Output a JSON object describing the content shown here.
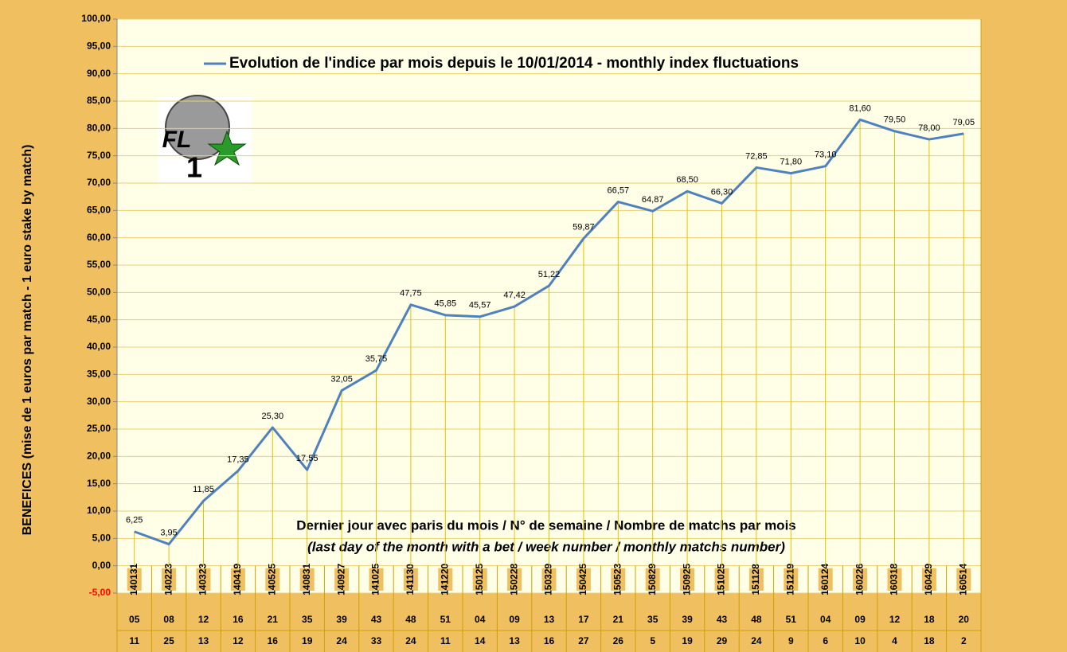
{
  "chart_data": {
    "type": "line",
    "y_label": "BENEFICES (mise de 1 euros par match - 1 euro stake by match)",
    "annotations": [
      "Dernier jour avec paris du mois / N° de semaine  / Nombre de matchs par mois",
      "(last day of the month with a bet / week number / monthly matchs number)"
    ],
    "logo": {
      "top": "FL",
      "bottom": "1"
    },
    "categories": [
      "140131",
      "140223",
      "140323",
      "140419",
      "140525",
      "140831",
      "140927",
      "141025",
      "141130",
      "141220",
      "150125",
      "150228",
      "150329",
      "150425",
      "150523",
      "150829",
      "150925",
      "151025",
      "151128",
      "151219",
      "160124",
      "160226",
      "160318",
      "160429",
      "160514"
    ],
    "week_numbers": [
      "05",
      "08",
      "12",
      "16",
      "21",
      "35",
      "39",
      "43",
      "48",
      "51",
      "04",
      "09",
      "13",
      "17",
      "21",
      "35",
      "39",
      "43",
      "48",
      "51",
      "04",
      "09",
      "12",
      "18",
      "20"
    ],
    "match_counts": [
      11,
      25,
      13,
      12,
      16,
      19,
      24,
      33,
      24,
      11,
      14,
      13,
      16,
      27,
      26,
      5,
      19,
      29,
      24,
      9,
      6,
      10,
      4,
      18,
      2
    ],
    "series": [
      {
        "name": "Evolution de l'indice par mois depuis le 10/01/2014  - monthly index fluctuations",
        "color": "#4f81bd",
        "values": [
          6.25,
          3.95,
          11.85,
          17.35,
          25.3,
          17.55,
          32.05,
          35.75,
          47.75,
          45.85,
          45.57,
          47.42,
          51.22,
          59.87,
          66.57,
          64.87,
          68.5,
          66.3,
          72.85,
          71.8,
          73.1,
          81.6,
          79.5,
          78,
          79.05
        ],
        "value_labels": [
          "6,25",
          "3,95",
          "11,85",
          "17,35",
          "25,30",
          "17,55",
          "32,05",
          "35,75",
          "47,75",
          "45,85",
          "45,57",
          "47,42",
          "51,22",
          "59,87",
          "66,57",
          "64,87",
          "68,50",
          "66,30",
          "72,85",
          "71,80",
          "73,10",
          "81,60",
          "79,50",
          "78,00",
          "79,05"
        ]
      }
    ],
    "ylim": [
      -5,
      100
    ],
    "yticks": [
      {
        "value": -5,
        "label": "-5,00",
        "color": "#ff0000"
      },
      {
        "value": 0,
        "label": "0,00"
      },
      {
        "value": 5,
        "label": "5,00"
      },
      {
        "value": 10,
        "label": "10,00"
      },
      {
        "value": 15,
        "label": "15,00"
      },
      {
        "value": 20,
        "label": "20,00"
      },
      {
        "value": 25,
        "label": "25,00"
      },
      {
        "value": 30,
        "label": "30,00"
      },
      {
        "value": 35,
        "label": "35,00"
      },
      {
        "value": 40,
        "label": "40,00"
      },
      {
        "value": 45,
        "label": "45,00"
      },
      {
        "value": 50,
        "label": "50,00"
      },
      {
        "value": 55,
        "label": "55,00"
      },
      {
        "value": 60,
        "label": "60,00"
      },
      {
        "value": 65,
        "label": "65,00"
      },
      {
        "value": 70,
        "label": "70,00"
      },
      {
        "value": 75,
        "label": "75,00"
      },
      {
        "value": 80,
        "label": "80,00"
      },
      {
        "value": 85,
        "label": "85,00"
      },
      {
        "value": 90,
        "label": "90,00"
      },
      {
        "value": 95,
        "label": "95,00"
      },
      {
        "value": 100,
        "label": "100,00"
      }
    ],
    "grid": true,
    "drop_lines": true
  }
}
